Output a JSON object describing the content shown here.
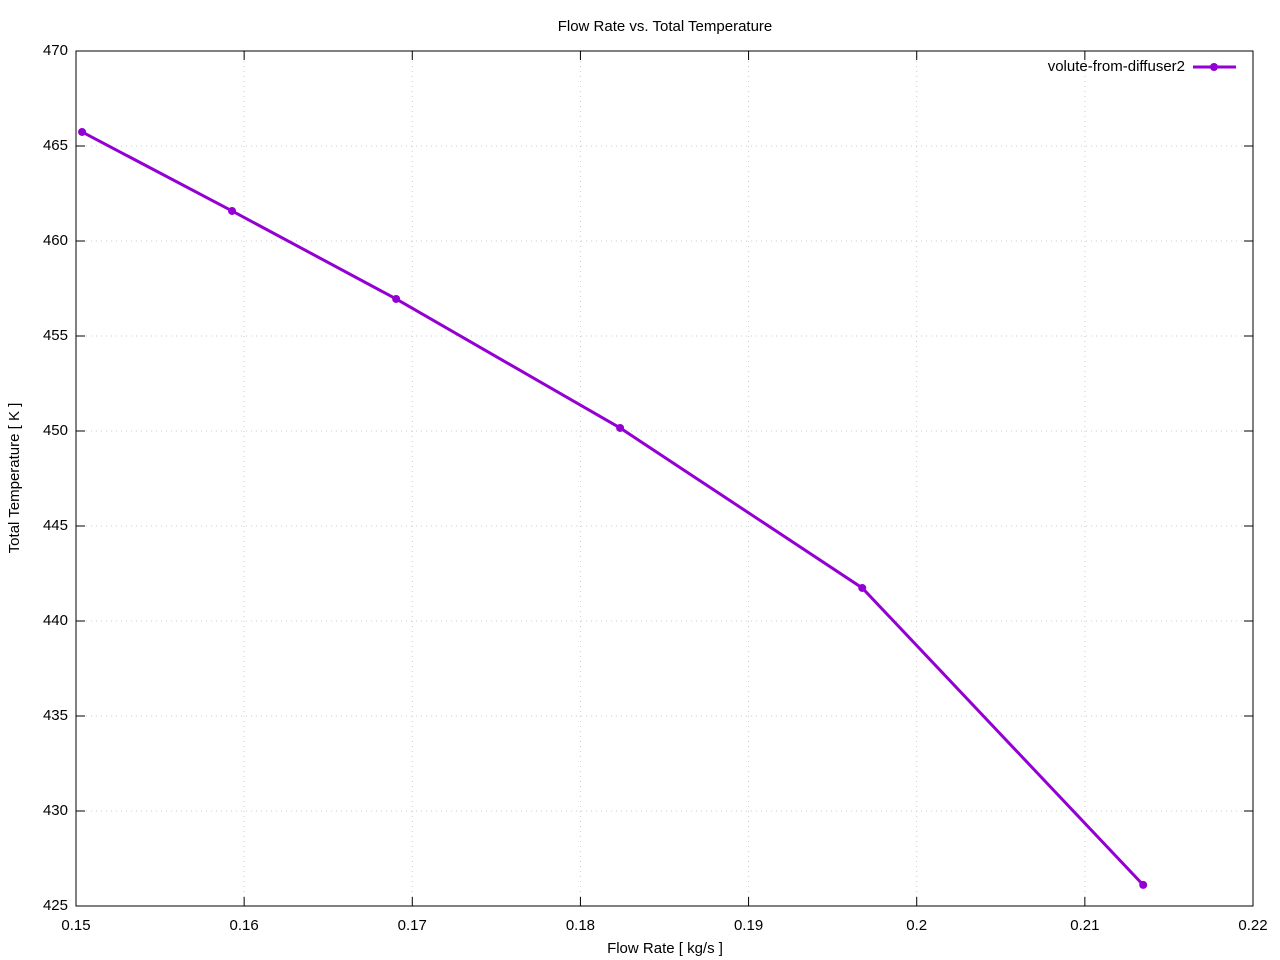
{
  "chart_data": {
    "type": "line",
    "title": "Flow Rate vs. Total Temperature",
    "x_label": "Flow Rate [ kg/s ]",
    "y_label": "Total Temperature [ K ]",
    "x": [
      0.15036,
      0.15928,
      0.16904,
      0.18236,
      0.19676,
      0.21347
    ],
    "series": [
      {
        "name": "volute-from-diffuser2",
        "color": "#9400d3",
        "values": [
          465.74,
          461.58,
          456.95,
          450.16,
          441.74,
          426.11
        ]
      }
    ],
    "xlim": [
      0.15,
      0.22
    ],
    "xticks": [
      0.15,
      0.16,
      0.17,
      0.18,
      0.19,
      0.2,
      0.21,
      0.22
    ],
    "ylim": [
      425,
      470
    ],
    "yticks": [
      425,
      430,
      435,
      440,
      445,
      450,
      455,
      460,
      465,
      470
    ],
    "grid": true,
    "legend": "top-right"
  }
}
